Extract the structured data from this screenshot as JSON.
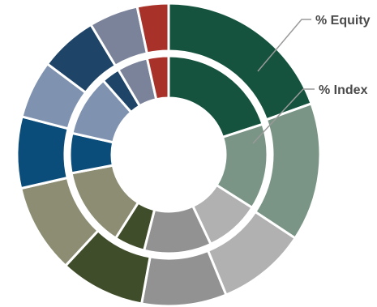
{
  "chart_data": {
    "type": "pie",
    "variant": "nested-donut",
    "series": [
      {
        "name": "% Equity",
        "ring": "outer",
        "values": [
          20.5,
          15.5,
          10,
          9.5,
          9.5,
          10,
          8,
          6.5,
          6.5,
          5.5,
          3.5
        ],
        "colors": [
          "#15533e",
          "#7a9585",
          "#b1b1b1",
          "#929292",
          "#3f4d2a",
          "#8c8d73",
          "#0a4c7a",
          "#7f92b0",
          "#1e4468",
          "#7b839a",
          "#a8322a"
        ]
      },
      {
        "name": "% Index",
        "ring": "inner",
        "values": [
          20,
          14,
          9,
          11,
          5,
          13,
          6.5,
          10,
          3,
          5,
          3.5
        ],
        "colors": [
          "#15533e",
          "#7a9585",
          "#b1b1b1",
          "#929292",
          "#3f4d2a",
          "#8c8d73",
          "#0a4c7a",
          "#7f92b0",
          "#1e4468",
          "#7b839a",
          "#a8322a"
        ]
      }
    ],
    "legend_placement": "top-right callouts"
  }
}
